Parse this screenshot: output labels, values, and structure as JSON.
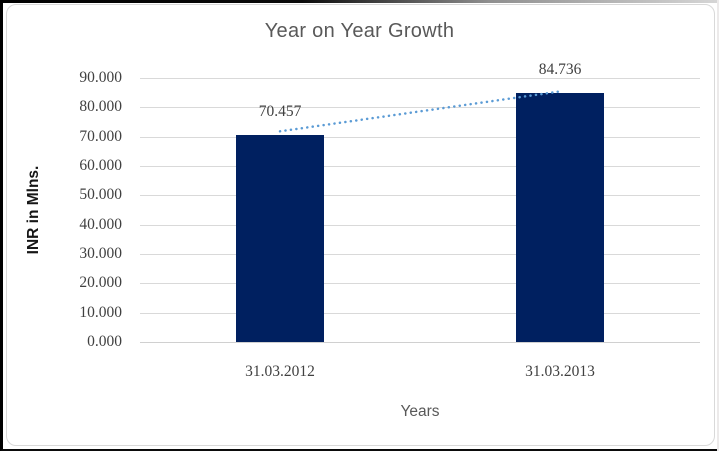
{
  "chart_data": {
    "type": "bar",
    "title": "Year on Year Growth",
    "categories": [
      "31.03.2012",
      "31.03.2013"
    ],
    "values": [
      70.457,
      84.736
    ],
    "data_labels": [
      "70.457",
      "84.736"
    ],
    "xlabel": "Years",
    "ylabel": "INR in Mlns.",
    "ylim": [
      0,
      90
    ],
    "ytick_step": 10,
    "ytick_labels": [
      "0.000",
      "10.000",
      "20.000",
      "30.000",
      "40.000",
      "50.000",
      "60.000",
      "70.000",
      "80.000",
      "90.000"
    ],
    "grid": true,
    "legend": "none",
    "trendline": {
      "type": "linear",
      "style": "dotted"
    }
  },
  "colors": {
    "bar": "#002060",
    "trendline": "#5b9bd5",
    "gridline": "#d9d9d9",
    "axis_line": "#d0d0d0",
    "title_text": "#595959",
    "tick_text": "#404040",
    "axis_title_text": "#171717",
    "frame_border": "#d9d9d9",
    "outer_border": "#000000"
  }
}
